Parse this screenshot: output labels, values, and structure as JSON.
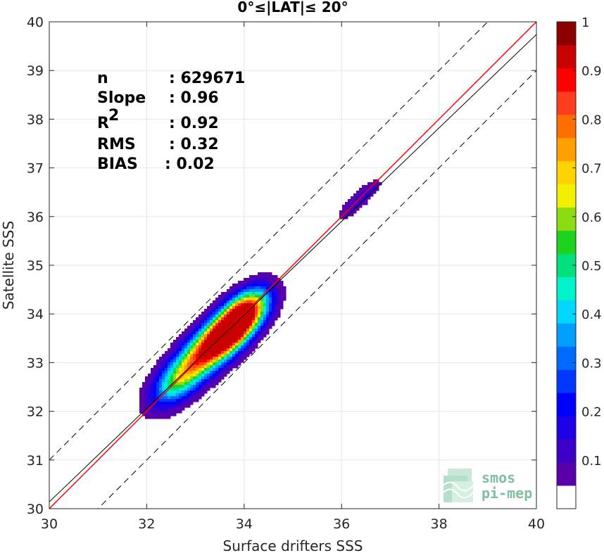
{
  "chart_data": {
    "type": "heatmap",
    "subtype": "normalized density contour (scatter density)",
    "title": "0°≤|LAT|≤ 20°",
    "xlabel": "Surface drifters SSS",
    "ylabel": "Satellite SSS",
    "xlim": [
      30,
      40
    ],
    "ylim": [
      30,
      40
    ],
    "x_ticks": [
      "30",
      "32",
      "34",
      "36",
      "38",
      "40"
    ],
    "y_ticks": [
      "30",
      "31",
      "32",
      "33",
      "34",
      "35",
      "36",
      "37",
      "38",
      "39",
      "40"
    ],
    "grid": true,
    "stats": [
      {
        "label": "n",
        "value": ": 629671"
      },
      {
        "label": "Slope",
        "value": ": 0.96"
      },
      {
        "label": "R",
        "sup": "2",
        "value": ": 0.92"
      },
      {
        "label": "RMS",
        "value": ": 0.32"
      },
      {
        "label": "BIAS",
        "value": ": 0.02"
      }
    ],
    "lines": [
      {
        "name": "identity",
        "color": "#ff0000",
        "x": [
          30,
          40
        ],
        "y": [
          30,
          40
        ]
      },
      {
        "name": "regression",
        "color": "#000000",
        "x": [
          30,
          40
        ],
        "y": [
          30.14,
          39.74
        ]
      },
      {
        "name": "upper-bound",
        "color": "#000000",
        "dashed": true,
        "x": [
          30,
          40
        ],
        "y": [
          31.0,
          41.0
        ]
      },
      {
        "name": "lower-bound",
        "color": "#000000",
        "dashed": true,
        "x": [
          30,
          40
        ],
        "y": [
          29.0,
          39.0
        ]
      }
    ],
    "density_peaks": [
      {
        "x": 33.3,
        "y": 33.3,
        "peak": 0.92
      },
      {
        "x": 34.0,
        "y": 34.0,
        "peak": 1.0
      },
      {
        "x": 36.3,
        "y": 36.3,
        "peak": 0.1
      }
    ],
    "contour_levels": [
      0.05,
      0.1,
      0.15,
      0.2,
      0.25,
      0.3,
      0.35,
      0.4,
      0.45,
      0.5,
      0.55,
      0.6,
      0.65,
      0.7,
      0.75,
      0.8,
      0.85,
      0.9,
      0.95
    ],
    "colorbar": {
      "range": [
        0,
        1
      ],
      "ticks": [
        "0.1",
        "0.2",
        "0.3",
        "0.4",
        "0.5",
        "0.6",
        "0.7",
        "0.8",
        "0.9",
        "1"
      ],
      "colors": [
        "#ffffff",
        "#5a00aa",
        "#3c00c8",
        "#1e00e6",
        "#0000ff",
        "#0038ff",
        "#006cff",
        "#00a0ff",
        "#00d6ff",
        "#00f2c8",
        "#00e07a",
        "#1ed21e",
        "#8cdc14",
        "#f0f000",
        "#ffd200",
        "#ffa000",
        "#ff6e00",
        "#ff3c1e",
        "#ff0000",
        "#c80000",
        "#8c0000"
      ]
    },
    "logo": {
      "line1": "smos",
      "line2": "pi-mep"
    }
  }
}
